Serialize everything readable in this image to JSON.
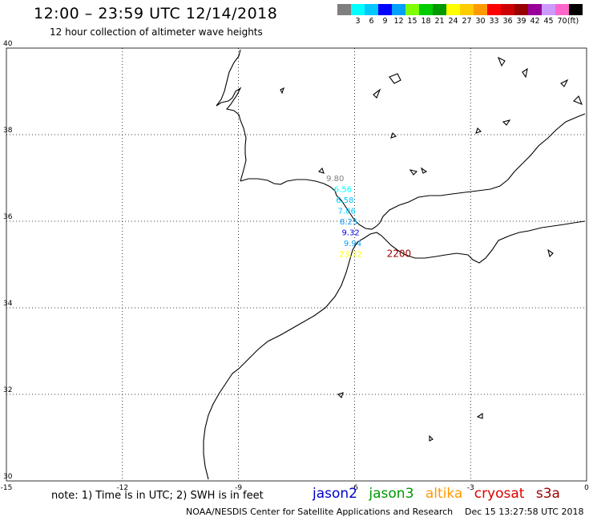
{
  "header": {
    "title": "12:00 – 23:59 UTC 12/14/2018",
    "subtitle": "12 hour collection of altimeter wave heights"
  },
  "scale": {
    "unit_label": "(ft)",
    "bins": [
      {
        "label": "",
        "color": "#7f7f7f"
      },
      {
        "label": "3",
        "color": "#00ffff"
      },
      {
        "label": "6",
        "color": "#00c8ff"
      },
      {
        "label": "9",
        "color": "#0000ff"
      },
      {
        "label": "12",
        "color": "#00a0ff"
      },
      {
        "label": "15",
        "color": "#7fff00"
      },
      {
        "label": "18",
        "color": "#00cc00"
      },
      {
        "label": "21",
        "color": "#009900"
      },
      {
        "label": "24",
        "color": "#ffff00"
      },
      {
        "label": "27",
        "color": "#ffcc00"
      },
      {
        "label": "30",
        "color": "#ff9900"
      },
      {
        "label": "33",
        "color": "#ff0000"
      },
      {
        "label": "36",
        "color": "#cc0000"
      },
      {
        "label": "39",
        "color": "#990000"
      },
      {
        "label": "42",
        "color": "#990099"
      },
      {
        "label": "45",
        "color": "#cc99ff"
      },
      {
        "label": "70",
        "color": "#ff66cc"
      },
      {
        "label": "",
        "color": "#000000"
      }
    ]
  },
  "map": {
    "lon_ticks": [
      "-15",
      "-12",
      "-9",
      "-6",
      "-3",
      "0"
    ],
    "lat_ticks": [
      "40",
      "38",
      "36",
      "34",
      "32",
      "30"
    ],
    "lon_values": [
      -15,
      -12,
      -9,
      -6,
      -3,
      0
    ],
    "lat_values": [
      40,
      38,
      36,
      34,
      32,
      30
    ],
    "observations": [
      {
        "text": "9.80",
        "color": "#7f7f7f",
        "lon": -6.5,
        "lat": 37.0
      },
      {
        "text": "6.56",
        "color": "#00ffff",
        "lon": -6.3,
        "lat": 36.75
      },
      {
        "text": "6.58",
        "color": "#00c8ff",
        "lon": -6.25,
        "lat": 36.5
      },
      {
        "text": "7.86",
        "color": "#00c8ff",
        "lon": -6.2,
        "lat": 36.25
      },
      {
        "text": "8.25",
        "color": "#00a0ff",
        "lon": -6.15,
        "lat": 36.0
      },
      {
        "text": "9.32",
        "color": "#0000ff",
        "lon": -6.1,
        "lat": 35.75
      },
      {
        "text": "9.94",
        "color": "#00a0ff",
        "lon": -6.05,
        "lat": 35.5
      },
      {
        "text": "23.72",
        "color": "#ffff00",
        "lon": -6.1,
        "lat": 35.25
      },
      {
        "text": "2200",
        "color": "#990000",
        "lon": -4.85,
        "lat": 35.25
      }
    ]
  },
  "footer": {
    "note": "note: 1) Time is in UTC; 2) SWH is in feet",
    "missions": [
      {
        "name": "jason2",
        "color": "#0000cc"
      },
      {
        "name": "jason3",
        "color": "#009900"
      },
      {
        "name": "altika",
        "color": "#ff9900"
      },
      {
        "name": "cryosat",
        "color": "#dd0000"
      },
      {
        "name": "s3a",
        "color": "#990000"
      }
    ],
    "credit": "NOAA/NESDIS Center for Satellite Applications and Research",
    "timestamp": "Dec 15 13:27:58 UTC 2018"
  }
}
